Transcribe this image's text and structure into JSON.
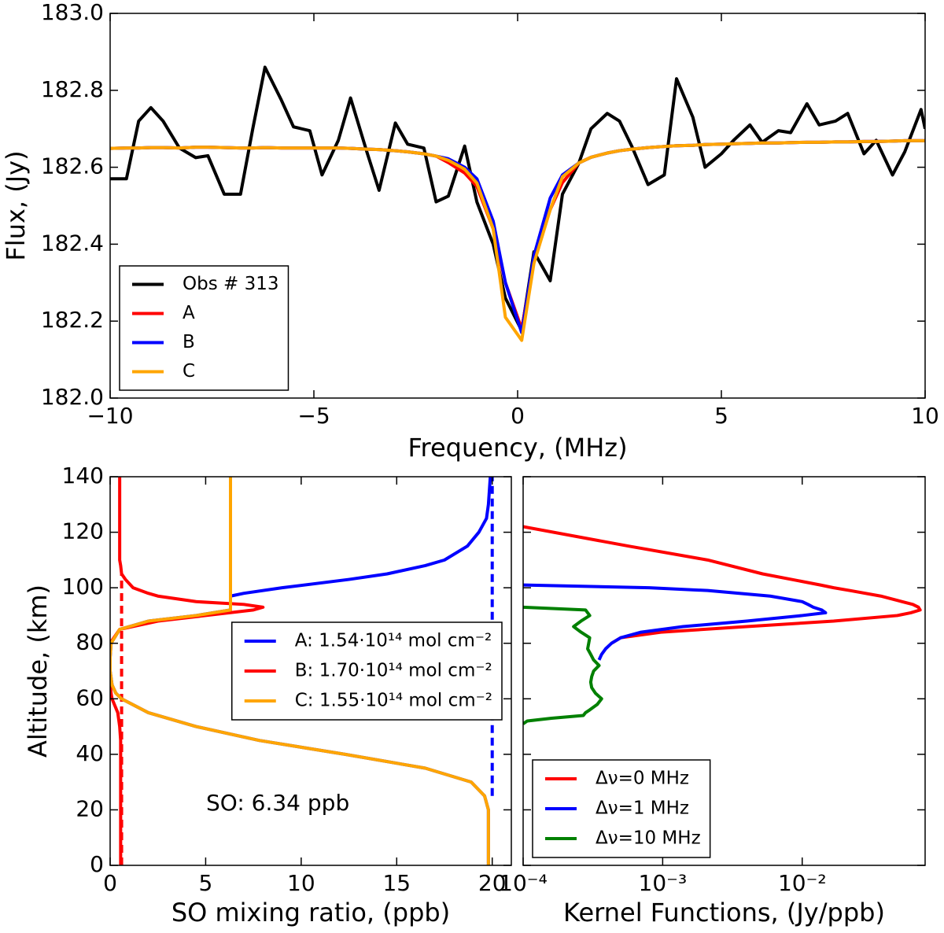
{
  "chart_data": [
    {
      "type": "line",
      "xlabel": "Frequency, (MHz)",
      "ylabel": "Flux, (Jy)",
      "xlim": [
        -10,
        10
      ],
      "ylim": [
        182,
        183
      ],
      "xticks": [
        {
          "value": -10,
          "label": "−10"
        },
        {
          "value": -5,
          "label": "−5"
        },
        0,
        5,
        10
      ],
      "yticks": [
        {
          "value": 182,
          "label": "182.0"
        },
        182.2,
        182.4,
        182.6,
        182.8,
        {
          "value": 183,
          "label": "183.0"
        }
      ],
      "legend": "lower left",
      "x": [
        -10,
        -9.6,
        -9.3,
        -9.0,
        -8.7,
        -8.3,
        -7.9,
        -7.6,
        -7.2,
        -6.8,
        -6.5,
        -6.2,
        -5.8,
        -5.5,
        -5.1,
        -4.8,
        -4.4,
        -4.1,
        -3.7,
        -3.4,
        -3.0,
        -2.7,
        -2.3,
        -2.0,
        -1.7,
        -1.3,
        -1.0,
        -0.6,
        -0.3,
        0.1,
        0.4,
        0.8,
        1.1,
        1.5,
        1.8,
        2.2,
        2.5,
        2.8,
        3.2,
        3.6,
        3.9,
        4.3,
        4.6,
        5.0,
        5.3,
        5.7,
        6.0,
        6.4,
        6.7,
        7.1,
        7.4,
        7.8,
        8.1,
        8.5,
        8.8,
        9.2,
        9.5,
        9.9,
        10
      ],
      "series": [
        {
          "name": "Obs # 313",
          "color": "#000000",
          "values": [
            182.57,
            182.57,
            182.72,
            182.755,
            182.72,
            182.65,
            182.625,
            182.63,
            182.53,
            182.53,
            182.7,
            182.86,
            182.775,
            182.705,
            182.695,
            182.58,
            182.67,
            182.78,
            182.64,
            182.54,
            182.715,
            182.66,
            182.65,
            182.51,
            182.525,
            182.655,
            182.51,
            182.4,
            182.26,
            182.175,
            182.38,
            182.305,
            182.53,
            182.61,
            182.7,
            182.74,
            182.72,
            182.655,
            182.555,
            182.58,
            182.83,
            182.73,
            182.6,
            182.635,
            182.67,
            182.71,
            182.665,
            182.695,
            182.69,
            182.765,
            182.71,
            182.72,
            182.74,
            182.635,
            182.67,
            182.58,
            182.64,
            182.75,
            182.7
          ]
        },
        {
          "name": "A",
          "color": "#ff0000",
          "values": [
            182.649,
            182.65,
            182.65,
            182.651,
            182.651,
            182.65,
            182.652,
            182.652,
            182.651,
            182.65,
            182.65,
            182.651,
            182.65,
            182.65,
            182.65,
            182.65,
            182.65,
            182.649,
            182.647,
            182.646,
            182.643,
            182.64,
            182.635,
            182.629,
            182.612,
            182.585,
            182.55,
            182.44,
            182.3,
            182.18,
            182.36,
            182.49,
            182.56,
            182.611,
            182.626,
            182.637,
            182.643,
            182.647,
            182.651,
            182.654,
            182.656,
            182.657,
            182.659,
            182.66,
            182.661,
            182.662,
            182.663,
            182.663,
            182.664,
            182.665,
            182.665,
            182.666,
            182.666,
            182.667,
            182.667,
            182.668,
            182.669,
            182.669,
            182.669
          ]
        },
        {
          "name": "B",
          "color": "#0000ff",
          "values": [
            182.649,
            182.65,
            182.65,
            182.651,
            182.651,
            182.65,
            182.652,
            182.652,
            182.651,
            182.65,
            182.65,
            182.651,
            182.65,
            182.65,
            182.65,
            182.65,
            182.65,
            182.649,
            182.647,
            182.646,
            182.643,
            182.64,
            182.635,
            182.629,
            182.622,
            182.6,
            182.57,
            182.46,
            182.3,
            182.17,
            182.37,
            182.52,
            182.58,
            182.611,
            182.626,
            182.637,
            182.643,
            182.647,
            182.651,
            182.654,
            182.656,
            182.657,
            182.659,
            182.66,
            182.661,
            182.662,
            182.663,
            182.663,
            182.664,
            182.665,
            182.665,
            182.666,
            182.666,
            182.667,
            182.667,
            182.668,
            182.669,
            182.669,
            182.669
          ]
        },
        {
          "name": "C",
          "color": "#ffa500",
          "values": [
            182.649,
            182.65,
            182.65,
            182.651,
            182.651,
            182.65,
            182.652,
            182.652,
            182.651,
            182.65,
            182.65,
            182.651,
            182.65,
            182.65,
            182.65,
            182.65,
            182.65,
            182.649,
            182.647,
            182.646,
            182.643,
            182.64,
            182.635,
            182.629,
            182.618,
            182.595,
            182.559,
            182.44,
            182.21,
            182.15,
            182.35,
            182.49,
            182.575,
            182.611,
            182.626,
            182.637,
            182.643,
            182.647,
            182.651,
            182.654,
            182.656,
            182.657,
            182.659,
            182.66,
            182.661,
            182.662,
            182.663,
            182.663,
            182.664,
            182.665,
            182.665,
            182.666,
            182.666,
            182.667,
            182.667,
            182.668,
            182.669,
            182.669,
            182.669
          ]
        }
      ]
    },
    {
      "type": "line",
      "xlabel": "SO mixing ratio, (ppb)",
      "ylabel": "Altitude, (km)",
      "xlim": [
        0,
        21
      ],
      "ylim": [
        0,
        140
      ],
      "xticks": [
        0,
        5,
        10,
        15,
        20
      ],
      "yticks": [
        0,
        20,
        40,
        60,
        80,
        100,
        120,
        140
      ],
      "legend": "center right",
      "annotation": "SO: 6.34 ppb",
      "y": [
        0,
        10,
        20,
        25,
        30,
        35,
        40,
        45,
        50,
        55,
        60,
        62,
        65,
        70,
        75,
        80,
        85,
        88,
        90,
        92,
        93,
        94,
        95,
        97,
        98,
        100,
        103,
        105,
        108,
        110,
        115,
        120,
        125,
        130,
        140
      ],
      "series": [
        {
          "color": "#ff0000",
          "dash": true,
          "values": [
            0.6,
            0.6,
            0.6,
            0.6,
            0.6,
            0.6,
            0.6,
            0.6,
            0.6,
            0.6,
            0.6,
            0.6,
            0.6,
            0.6,
            0.6,
            0.6,
            0.6,
            0.6,
            0.6,
            0.6,
            0.6,
            0.6,
            0.6,
            0.6,
            0.6,
            0.6,
            0.6,
            0.6,
            null,
            null,
            null,
            null,
            null,
            null,
            null
          ]
        },
        {
          "color": "#0000ff",
          "dash": true,
          "values": [
            null,
            null,
            null,
            20,
            20,
            20,
            20,
            20,
            20,
            20,
            20,
            20,
            20,
            20,
            20,
            20,
            20,
            20,
            20,
            20,
            20,
            20,
            20,
            20,
            20,
            20,
            20,
            20,
            20,
            20,
            20,
            20,
            20,
            20,
            20
          ]
        },
        {
          "name": "A: 1.54·10¹⁴ mol cm⁻²",
          "color": "#0000ff",
          "values": [
            19.8,
            19.8,
            19.8,
            19.6,
            18.9,
            16.5,
            12.3,
            7.8,
            4.5,
            2.0,
            0.6,
            0.3,
            0.1,
            0,
            0,
            0.05,
            0.5,
            2.0,
            4.5,
            6.3,
            6.3,
            6.3,
            6.3,
            6.3,
            7.0,
            9.0,
            12.5,
            14.5,
            16.5,
            17.5,
            18.7,
            19.3,
            19.7,
            19.8,
            19.9
          ]
        },
        {
          "name": "B: 1.70·10¹⁴ mol cm⁻²",
          "color": "#ff0000",
          "values": [
            0.55,
            0.55,
            0.55,
            0.55,
            0.55,
            0.55,
            0.55,
            0.55,
            0.5,
            0.4,
            0.1,
            0.05,
            0,
            0,
            0,
            0,
            0.5,
            2.5,
            5.0,
            7.5,
            8.0,
            7.0,
            4.5,
            2.5,
            2.0,
            1.2,
            0.8,
            0.6,
            0.55,
            0.5,
            0.5,
            0.5,
            0.5,
            0.5,
            0.5
          ]
        },
        {
          "name": "C: 1.55·10¹⁴ mol cm⁻²",
          "color": "#ffa500",
          "values": [
            19.8,
            19.8,
            19.8,
            19.6,
            18.9,
            16.5,
            12.3,
            7.8,
            4.5,
            2.0,
            0.6,
            0.3,
            0.1,
            0,
            0,
            0.05,
            0.5,
            2.0,
            4.5,
            6.3,
            6.3,
            6.3,
            6.3,
            6.3,
            6.3,
            6.3,
            6.3,
            6.3,
            6.3,
            6.3,
            6.3,
            6.3,
            6.3,
            6.3,
            6.3
          ]
        }
      ]
    },
    {
      "type": "line",
      "xlabel": "Kernel Functions, (Jy/ppb)",
      "xscale": "log",
      "xlim": [
        0.0001,
        0.076
      ],
      "ylim": [
        0,
        140
      ],
      "xticks": [
        {
          "value": 0.0001,
          "label": "10⁻⁴"
        },
        {
          "value": 0.001,
          "label": "10⁻³"
        },
        {
          "value": 0.01,
          "label": "10⁻²"
        }
      ],
      "yticks": [
        0,
        20,
        40,
        60,
        80,
        100,
        120,
        140
      ],
      "ytick_labels": false,
      "legend": "lower left",
      "y": [
        51,
        52,
        53,
        54,
        55,
        56,
        58,
        60,
        62,
        64,
        66,
        68,
        70,
        72,
        74,
        76,
        78,
        80,
        82,
        84,
        86,
        88,
        90,
        91,
        92,
        93,
        94,
        95,
        97,
        99,
        100,
        101,
        105,
        110,
        115,
        122
      ],
      "series": [
        {
          "name": "Δν=0 MHz",
          "color": "#ff0000",
          "values": [
            null,
            null,
            null,
            null,
            null,
            null,
            null,
            null,
            null,
            null,
            null,
            null,
            null,
            null,
            null,
            null,
            null,
            0.00043,
            0.0005,
            0.00097,
            0.004,
            0.0168,
            0.048,
            0.06,
            0.07,
            0.068,
            0.062,
            0.052,
            0.0366,
            0.022,
            0.0168,
            0.0135,
            0.0052,
            0.0021,
            0.00057,
            0.0001
          ]
        },
        {
          "name": "Δν=1 MHz",
          "color": "#0000ff",
          "values": [
            null,
            null,
            null,
            null,
            null,
            null,
            null,
            null,
            null,
            null,
            null,
            null,
            null,
            null,
            0.00035,
            0.000365,
            0.00039,
            0.00043,
            0.0005,
            0.0007,
            0.0014,
            0.004,
            0.01,
            0.0147,
            0.0138,
            0.012,
            0.011,
            0.01,
            0.0059,
            0.0021,
            0.0008,
            0.0001,
            null,
            null,
            null,
            null
          ]
        },
        {
          "name": "Δν=10 MHz",
          "color": "#008000",
          "values": [
            0.0001,
            0.000107,
            0.00016,
            0.00027,
            0.00028,
            0.0003,
            0.00034,
            0.000365,
            0.00033,
            0.00031,
            0.000305,
            0.00031,
            0.00032,
            0.00035,
            0.00032,
            0.000305,
            0.00029,
            0.000295,
            0.0003,
            0.00026,
            0.00023,
            0.00026,
            0.0003,
            0.00029,
            0.00028,
            0.0001,
            null,
            null,
            null,
            null,
            null,
            null,
            null,
            null,
            null,
            null
          ]
        }
      ]
    }
  ]
}
